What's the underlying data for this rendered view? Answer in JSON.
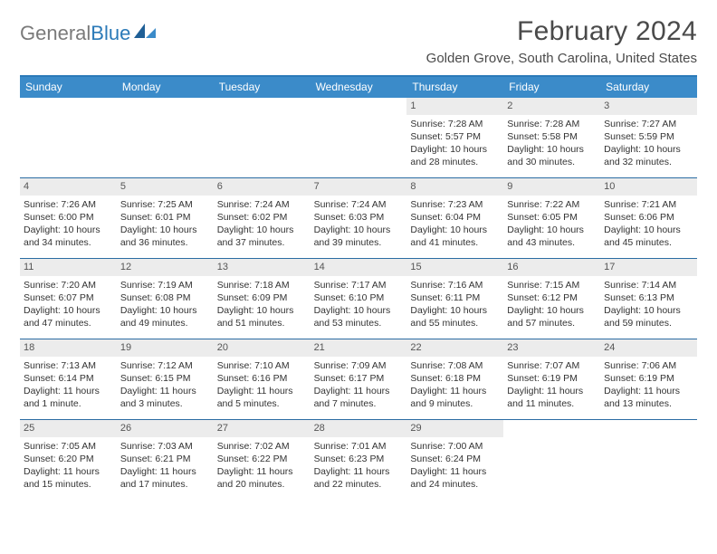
{
  "logo": {
    "text1": "General",
    "text2": "Blue"
  },
  "title": "February 2024",
  "location": "Golden Grove, South Carolina, United States",
  "colors": {
    "header_bg": "#3b8bc9",
    "rule": "#2b6ca3",
    "daynum_bg": "#ececec",
    "text": "#333333",
    "title_text": "#4a4a4a"
  },
  "day_names": [
    "Sunday",
    "Monday",
    "Tuesday",
    "Wednesday",
    "Thursday",
    "Friday",
    "Saturday"
  ],
  "weeks": [
    [
      null,
      null,
      null,
      null,
      {
        "n": "1",
        "sr": "7:28 AM",
        "ss": "5:57 PM",
        "dl": "10 hours and 28 minutes."
      },
      {
        "n": "2",
        "sr": "7:28 AM",
        "ss": "5:58 PM",
        "dl": "10 hours and 30 minutes."
      },
      {
        "n": "3",
        "sr": "7:27 AM",
        "ss": "5:59 PM",
        "dl": "10 hours and 32 minutes."
      }
    ],
    [
      {
        "n": "4",
        "sr": "7:26 AM",
        "ss": "6:00 PM",
        "dl": "10 hours and 34 minutes."
      },
      {
        "n": "5",
        "sr": "7:25 AM",
        "ss": "6:01 PM",
        "dl": "10 hours and 36 minutes."
      },
      {
        "n": "6",
        "sr": "7:24 AM",
        "ss": "6:02 PM",
        "dl": "10 hours and 37 minutes."
      },
      {
        "n": "7",
        "sr": "7:24 AM",
        "ss": "6:03 PM",
        "dl": "10 hours and 39 minutes."
      },
      {
        "n": "8",
        "sr": "7:23 AM",
        "ss": "6:04 PM",
        "dl": "10 hours and 41 minutes."
      },
      {
        "n": "9",
        "sr": "7:22 AM",
        "ss": "6:05 PM",
        "dl": "10 hours and 43 minutes."
      },
      {
        "n": "10",
        "sr": "7:21 AM",
        "ss": "6:06 PM",
        "dl": "10 hours and 45 minutes."
      }
    ],
    [
      {
        "n": "11",
        "sr": "7:20 AM",
        "ss": "6:07 PM",
        "dl": "10 hours and 47 minutes."
      },
      {
        "n": "12",
        "sr": "7:19 AM",
        "ss": "6:08 PM",
        "dl": "10 hours and 49 minutes."
      },
      {
        "n": "13",
        "sr": "7:18 AM",
        "ss": "6:09 PM",
        "dl": "10 hours and 51 minutes."
      },
      {
        "n": "14",
        "sr": "7:17 AM",
        "ss": "6:10 PM",
        "dl": "10 hours and 53 minutes."
      },
      {
        "n": "15",
        "sr": "7:16 AM",
        "ss": "6:11 PM",
        "dl": "10 hours and 55 minutes."
      },
      {
        "n": "16",
        "sr": "7:15 AM",
        "ss": "6:12 PM",
        "dl": "10 hours and 57 minutes."
      },
      {
        "n": "17",
        "sr": "7:14 AM",
        "ss": "6:13 PM",
        "dl": "10 hours and 59 minutes."
      }
    ],
    [
      {
        "n": "18",
        "sr": "7:13 AM",
        "ss": "6:14 PM",
        "dl": "11 hours and 1 minute."
      },
      {
        "n": "19",
        "sr": "7:12 AM",
        "ss": "6:15 PM",
        "dl": "11 hours and 3 minutes."
      },
      {
        "n": "20",
        "sr": "7:10 AM",
        "ss": "6:16 PM",
        "dl": "11 hours and 5 minutes."
      },
      {
        "n": "21",
        "sr": "7:09 AM",
        "ss": "6:17 PM",
        "dl": "11 hours and 7 minutes."
      },
      {
        "n": "22",
        "sr": "7:08 AM",
        "ss": "6:18 PM",
        "dl": "11 hours and 9 minutes."
      },
      {
        "n": "23",
        "sr": "7:07 AM",
        "ss": "6:19 PM",
        "dl": "11 hours and 11 minutes."
      },
      {
        "n": "24",
        "sr": "7:06 AM",
        "ss": "6:19 PM",
        "dl": "11 hours and 13 minutes."
      }
    ],
    [
      {
        "n": "25",
        "sr": "7:05 AM",
        "ss": "6:20 PM",
        "dl": "11 hours and 15 minutes."
      },
      {
        "n": "26",
        "sr": "7:03 AM",
        "ss": "6:21 PM",
        "dl": "11 hours and 17 minutes."
      },
      {
        "n": "27",
        "sr": "7:02 AM",
        "ss": "6:22 PM",
        "dl": "11 hours and 20 minutes."
      },
      {
        "n": "28",
        "sr": "7:01 AM",
        "ss": "6:23 PM",
        "dl": "11 hours and 22 minutes."
      },
      {
        "n": "29",
        "sr": "7:00 AM",
        "ss": "6:24 PM",
        "dl": "11 hours and 24 minutes."
      },
      null,
      null
    ]
  ],
  "labels": {
    "sunrise": "Sunrise: ",
    "sunset": "Sunset: ",
    "daylight": "Daylight: "
  }
}
